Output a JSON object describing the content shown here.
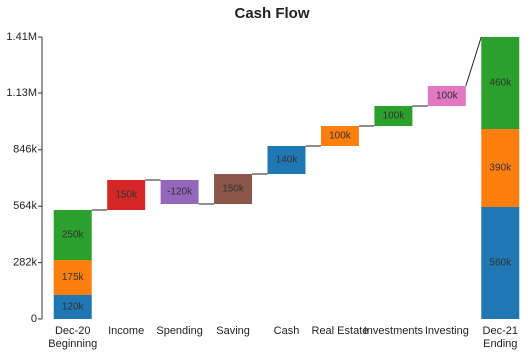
{
  "chart_data": {
    "type": "waterfall",
    "title": "Cash Flow",
    "categories": [
      [
        "Dec-20",
        "Beginning"
      ],
      [
        "Income"
      ],
      [
        "Spending"
      ],
      [
        "Saving"
      ],
      [
        "Cash"
      ],
      [
        "Real Estate"
      ],
      [
        "Investments"
      ],
      [
        "Investing"
      ],
      [
        "Dec-21",
        "Ending"
      ]
    ],
    "is_total": [
      true,
      false,
      false,
      false,
      false,
      false,
      false,
      false,
      true
    ],
    "values": [
      [
        120000,
        175000,
        250000
      ],
      [
        150000
      ],
      [
        -120000
      ],
      [
        150000
      ],
      [
        140000
      ],
      [
        100000
      ],
      [
        100000
      ],
      [
        100000
      ],
      [
        560000,
        390000,
        460000
      ]
    ],
    "value_labels": [
      [
        "120k",
        "175k",
        "250k"
      ],
      [
        "150k"
      ],
      [
        "-120k"
      ],
      [
        "150k"
      ],
      [
        "140k"
      ],
      [
        "100k"
      ],
      [
        "100k"
      ],
      [
        "100k"
      ],
      [
        "560k",
        "390k",
        "460k"
      ]
    ],
    "colors": [
      [
        "#1f77b4",
        "#ff7f0e",
        "#2ca02c"
      ],
      [
        "#d62728"
      ],
      [
        "#9467bd"
      ],
      [
        "#8c564b"
      ],
      [
        "#1f77b4"
      ],
      [
        "#ff7f0e"
      ],
      [
        "#2ca02c"
      ],
      [
        "#e377c2"
      ],
      [
        "#1f77b4",
        "#ff7f0e",
        "#2ca02c"
      ]
    ],
    "ylim": [
      0,
      1410000
    ],
    "yticks": [
      0,
      {
        "value": 282000,
        "label": "282k"
      },
      {
        "value": 564000,
        "label": "564k"
      },
      {
        "value": 846000,
        "label": "846k"
      },
      {
        "value": 1130000,
        "label": "1.13M"
      },
      {
        "value": 1410000,
        "label": "1.41M"
      }
    ]
  }
}
